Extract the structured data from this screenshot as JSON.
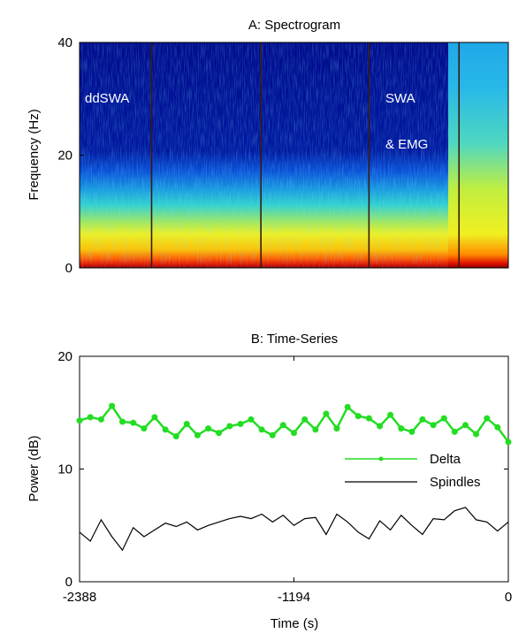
{
  "chart_data": [
    {
      "type": "heatmap",
      "title": "A: Spectrogram",
      "ylabel": "Frequency (Hz)",
      "xlabel": "",
      "ylim": [
        0,
        40
      ],
      "yticks": [
        0,
        20,
        40
      ],
      "colormap": "jet",
      "annotations": [
        "ddSWA",
        "SWA",
        "& EMG"
      ],
      "event_lines_fraction": [
        0.168,
        0.423,
        0.675,
        0.885
      ]
    },
    {
      "type": "line",
      "title": "B: Time-Series",
      "xlabel": "Time (s)",
      "ylabel": "Power (dB)",
      "xlim": [
        -2388,
        0
      ],
      "ylim": [
        0,
        20
      ],
      "xticks": [
        -2388,
        -1194,
        0
      ],
      "yticks": [
        0,
        10,
        20
      ],
      "legend_position": "center-right",
      "series": [
        {
          "name": "Delta",
          "color": "#22dd22",
          "marker": "dot",
          "x": [
            -2388,
            -2328,
            -2268,
            -2208,
            -2149,
            -2089,
            -2029,
            -1970,
            -1910,
            -1850,
            -1791,
            -1731,
            -1671,
            -1612,
            -1552,
            -1492,
            -1433,
            -1373,
            -1313,
            -1254,
            -1194,
            -1134,
            -1074,
            -1015,
            -955,
            -895,
            -836,
            -776,
            -716,
            -657,
            -597,
            -537,
            -478,
            -418,
            -358,
            -299,
            -239,
            -179,
            -119,
            -60,
            0
          ],
          "values": [
            14.3,
            14.6,
            14.4,
            15.6,
            14.2,
            14.1,
            13.6,
            14.6,
            13.5,
            12.9,
            14.0,
            13.0,
            13.6,
            13.2,
            13.8,
            14.0,
            14.4,
            13.5,
            13.0,
            13.9,
            13.2,
            14.4,
            13.5,
            14.9,
            13.6,
            15.5,
            14.7,
            14.5,
            13.8,
            14.8,
            13.6,
            13.3,
            14.4,
            13.9,
            14.5,
            13.3,
            13.9,
            13.1,
            14.5,
            13.7,
            12.4
          ]
        },
        {
          "name": "Spindles",
          "color": "#000000",
          "x": [
            -2388,
            -2328,
            -2268,
            -2208,
            -2149,
            -2089,
            -2029,
            -1970,
            -1910,
            -1850,
            -1791,
            -1731,
            -1671,
            -1612,
            -1552,
            -1492,
            -1433,
            -1373,
            -1313,
            -1254,
            -1194,
            -1134,
            -1074,
            -1015,
            -955,
            -895,
            -836,
            -776,
            -716,
            -657,
            -597,
            -537,
            -478,
            -418,
            -358,
            -299,
            -239,
            -179,
            -119,
            -60,
            0
          ],
          "values": [
            4.4,
            3.6,
            5.5,
            4.0,
            2.8,
            4.8,
            4.0,
            4.6,
            5.2,
            4.9,
            5.3,
            4.6,
            5.0,
            5.3,
            5.6,
            5.8,
            5.6,
            6.0,
            5.3,
            5.9,
            5.0,
            5.6,
            5.7,
            4.2,
            6.0,
            5.3,
            4.4,
            3.8,
            5.4,
            4.6,
            5.9,
            5.0,
            4.2,
            5.6,
            5.5,
            6.3,
            6.6,
            5.5,
            5.3,
            4.5,
            5.3
          ]
        }
      ]
    }
  ]
}
